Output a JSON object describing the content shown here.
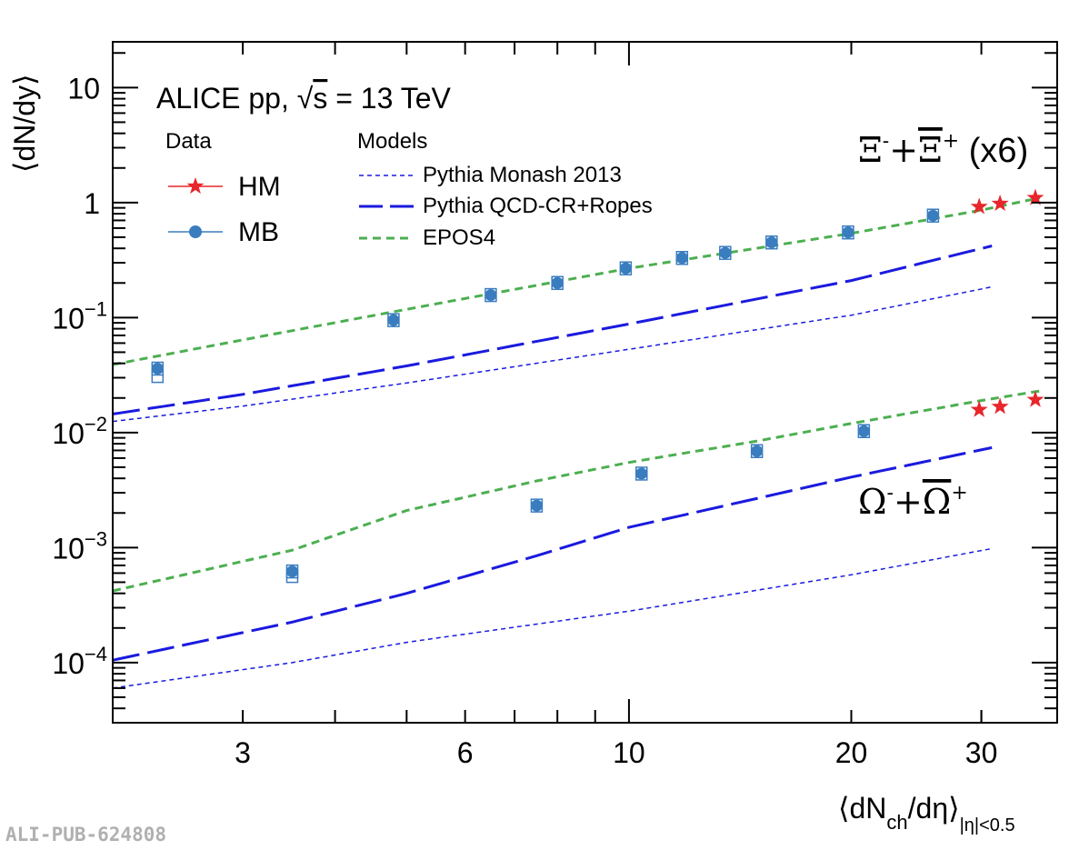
{
  "chart_data": {
    "type": "scatter",
    "title": "ALICE pp, √s = 13 TeV",
    "title_parts": {
      "prefix": "ALICE pp, ",
      "sqrt": "√",
      "s": "s",
      "suffix": " = 13 TeV"
    },
    "xlabel": {
      "main": "⟨dN",
      "sub": "ch",
      "mid": "/dη⟩",
      "range": "|η|<0.5"
    },
    "ylabel": "⟨dN/dy⟩",
    "xscale": "log",
    "yscale": "log",
    "xlim": [
      2.0,
      38.0
    ],
    "ylim": [
      3e-05,
      25
    ],
    "x_tick_labels": [
      {
        "v": 3,
        "label": "3"
      },
      {
        "v": 6,
        "label": "6"
      },
      {
        "v": 10,
        "label": "10"
      },
      {
        "v": 20,
        "label": "20"
      },
      {
        "v": 30,
        "label": "30"
      }
    ],
    "y_tick_labels": [
      {
        "exp": -4,
        "base": "10",
        "sup": "−4"
      },
      {
        "exp": -3,
        "base": "10",
        "sup": "−3"
      },
      {
        "exp": -2,
        "base": "10",
        "sup": "−2"
      },
      {
        "exp": -1,
        "base": "10",
        "sup": "−1"
      },
      {
        "exp": 0,
        "base": "1",
        "sup": ""
      },
      {
        "exp": 1,
        "base": "10",
        "sup": ""
      }
    ],
    "legend": {
      "data_title": "Data",
      "models_title": "Models",
      "entries": [
        {
          "key": "HM",
          "label": "HM",
          "color": "#e8262b",
          "marker": "star"
        },
        {
          "key": "MB",
          "label": "MB",
          "color": "#3a7dbf",
          "marker": "circle"
        }
      ],
      "model_entries": [
        {
          "key": "monash",
          "label": "Pythia Monash 2013",
          "color": "#1a1adf",
          "style": "short-dash-thin"
        },
        {
          "key": "ropes",
          "label": "Pythia QCD-CR+Ropes",
          "color": "#1a1adf",
          "style": "long-dash-thick"
        },
        {
          "key": "epos",
          "label": "EPOS4",
          "color": "#4caf50",
          "style": "dash"
        }
      ]
    },
    "annotations": [
      {
        "key": "xi",
        "parts": [
          "Ξ",
          "-",
          "+",
          "Ξ",
          "+",
          " (x6)"
        ]
      },
      {
        "key": "omega",
        "parts": [
          "Ω",
          "-",
          "+",
          "Ω",
          "+"
        ]
      }
    ],
    "series": [
      {
        "name": "Xi MB",
        "marker": "circle",
        "color": "#3a7dbf",
        "points": [
          [
            2.3,
            0.036
          ],
          [
            4.8,
            0.095
          ],
          [
            6.5,
            0.157
          ],
          [
            8.0,
            0.2
          ],
          [
            9.9,
            0.268
          ],
          [
            11.8,
            0.33
          ],
          [
            13.5,
            0.365
          ],
          [
            15.6,
            0.45
          ],
          [
            19.8,
            0.55
          ],
          [
            25.8,
            0.77
          ]
        ]
      },
      {
        "name": "Xi HM",
        "marker": "star",
        "color": "#e8262b",
        "points": [
          [
            29.8,
            0.92
          ],
          [
            31.8,
            0.98
          ],
          [
            35.5,
            1.1
          ]
        ]
      },
      {
        "name": "Omega MB",
        "marker": "circle",
        "color": "#3a7dbf",
        "points": [
          [
            2.3,
            null
          ],
          [
            3.5,
            0.00062
          ],
          [
            7.5,
            0.00232
          ],
          [
            10.4,
            0.0044
          ],
          [
            14.9,
            0.0069
          ],
          [
            20.8,
            0.0103
          ]
        ]
      },
      {
        "name": "Omega HM",
        "marker": "star",
        "color": "#e8262b",
        "points": [
          [
            29.8,
            0.0158
          ],
          [
            31.8,
            0.0168
          ],
          [
            35.5,
            0.0193
          ]
        ]
      }
    ],
    "model_curves": [
      {
        "name": "EPOS4 Xi",
        "style": "epos",
        "points": [
          [
            2.0,
            0.039
          ],
          [
            3.0,
            0.064
          ],
          [
            5.0,
            0.118
          ],
          [
            10.0,
            0.268
          ],
          [
            20.0,
            0.54
          ],
          [
            30.0,
            0.86
          ],
          [
            36.0,
            1.1
          ]
        ]
      },
      {
        "name": "Ropes Xi",
        "style": "ropes",
        "points": [
          [
            2.0,
            0.0145
          ],
          [
            3.0,
            0.0215
          ],
          [
            5.0,
            0.038
          ],
          [
            10.0,
            0.088
          ],
          [
            20.0,
            0.21
          ],
          [
            31.0,
            0.42
          ]
        ]
      },
      {
        "name": "Monash Xi",
        "style": "monash",
        "points": [
          [
            2.0,
            0.0125
          ],
          [
            3.0,
            0.017
          ],
          [
            5.0,
            0.027
          ],
          [
            10.0,
            0.053
          ],
          [
            20.0,
            0.105
          ],
          [
            31.0,
            0.185
          ]
        ]
      },
      {
        "name": "EPOS4 Omega",
        "style": "epos",
        "points": [
          [
            2.0,
            0.00042
          ],
          [
            3.5,
            0.00095
          ],
          [
            5.0,
            0.0021
          ],
          [
            7.5,
            0.0038
          ],
          [
            10.0,
            0.0055
          ],
          [
            15.0,
            0.0085
          ],
          [
            20.0,
            0.012
          ],
          [
            30.0,
            0.019
          ],
          [
            36.0,
            0.023
          ]
        ]
      },
      {
        "name": "Ropes Omega",
        "style": "ropes",
        "points": [
          [
            2.0,
            0.000105
          ],
          [
            3.5,
            0.000225
          ],
          [
            5.0,
            0.0004
          ],
          [
            7.5,
            0.00085
          ],
          [
            10.0,
            0.0015
          ],
          [
            15.0,
            0.0027
          ],
          [
            20.0,
            0.0041
          ],
          [
            31.0,
            0.0074
          ]
        ]
      },
      {
        "name": "Monash Omega",
        "style": "monash",
        "points": [
          [
            2.0,
            6e-05
          ],
          [
            3.5,
            0.0001
          ],
          [
            5.0,
            0.00015
          ],
          [
            10.0,
            0.00028
          ],
          [
            20.0,
            0.00058
          ],
          [
            31.0,
            0.00098
          ]
        ]
      }
    ]
  },
  "footer": {
    "pub_id": "ALI-PUB-624808"
  }
}
